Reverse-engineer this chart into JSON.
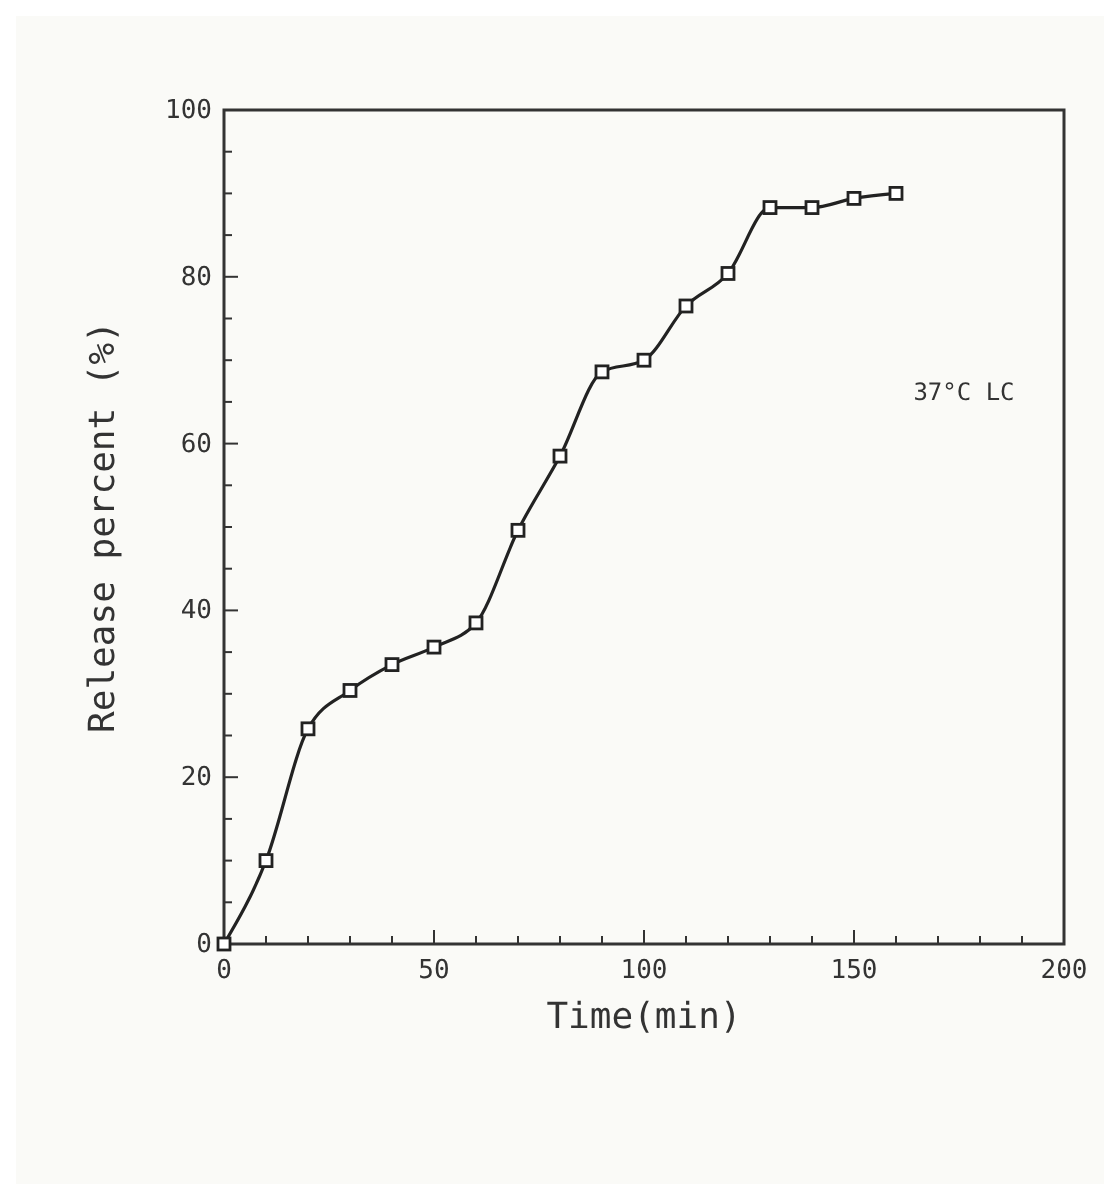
{
  "chart_data": {
    "type": "line",
    "xlabel": "Time(min)",
    "ylabel": "Release percent (%)",
    "annotations": [
      "37°C LC"
    ],
    "x": [
      0,
      10,
      20,
      30,
      40,
      50,
      60,
      70,
      80,
      90,
      100,
      110,
      120,
      130,
      140,
      150,
      160
    ],
    "series": [
      {
        "color": "#222222",
        "values": [
          0,
          10,
          25.8,
          30.4,
          33.5,
          35.6,
          38.5,
          49.6,
          58.5,
          68.6,
          70,
          76.5,
          80.4,
          88.3,
          88.3,
          89.4,
          90
        ]
      }
    ],
    "marker": "square",
    "line_style": "solid",
    "grid": false,
    "xlim": [
      0,
      200
    ],
    "ylim": [
      0,
      100
    ],
    "xticks": [
      0,
      {
        "value": 10,
        "label": null
      },
      {
        "value": 20,
        "label": null
      },
      {
        "value": 30,
        "label": null
      },
      {
        "value": 40,
        "label": null
      },
      50,
      {
        "value": 60,
        "label": null
      },
      {
        "value": 70,
        "label": null
      },
      {
        "value": 80,
        "label": null
      },
      {
        "value": 90,
        "label": null
      },
      100,
      {
        "value": 110,
        "label": null
      },
      {
        "value": 120,
        "label": null
      },
      {
        "value": 130,
        "label": null
      },
      {
        "value": 140,
        "label": null
      },
      150,
      {
        "value": 160,
        "label": null
      },
      {
        "value": 170,
        "label": null
      },
      {
        "value": 180,
        "label": null
      },
      {
        "value": 190,
        "label": null
      },
      200
    ],
    "yticks": [
      0,
      {
        "value": 5,
        "label": null
      },
      {
        "value": 10,
        "label": null
      },
      {
        "value": 15,
        "label": null
      },
      20,
      {
        "value": 25,
        "label": null
      },
      {
        "value": 30,
        "label": null
      },
      {
        "value": 35,
        "label": null
      },
      40,
      {
        "value": 45,
        "label": null
      },
      {
        "value": 50,
        "label": null
      },
      {
        "value": 55,
        "label": null
      },
      60,
      {
        "value": 65,
        "label": null
      },
      {
        "value": 70,
        "label": null
      },
      {
        "value": 75,
        "label": null
      },
      80,
      {
        "value": 85,
        "label": null
      },
      {
        "value": 90,
        "label": null
      },
      {
        "value": 95,
        "label": null
      },
      100
    ]
  }
}
